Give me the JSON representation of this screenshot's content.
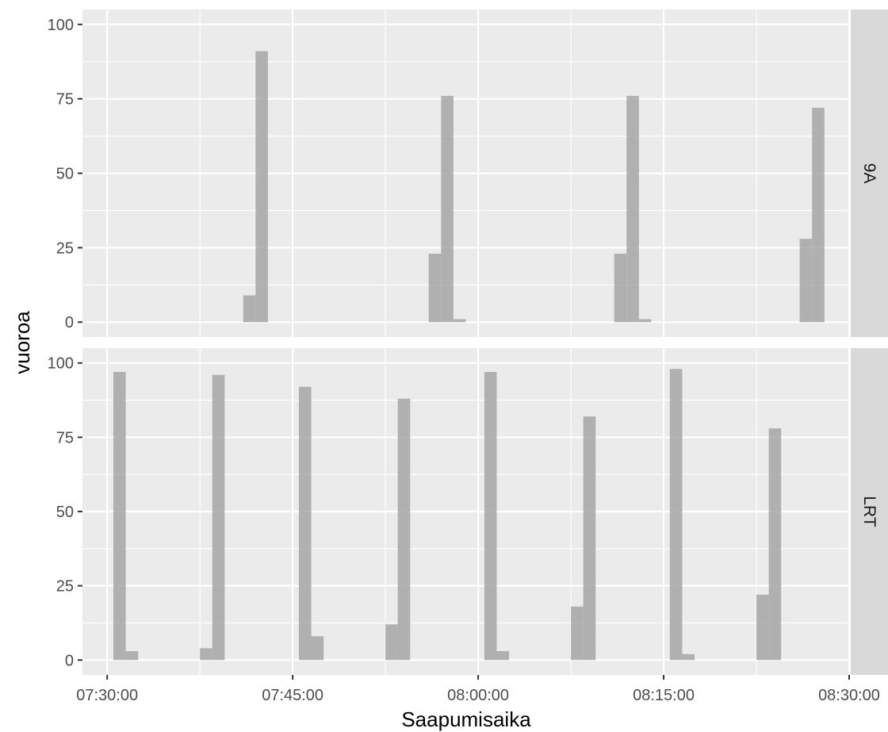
{
  "chart_data": {
    "type": "bar",
    "xlabel": "Saapumisaika",
    "ylabel": "vuoroa",
    "x_ticks": [
      "07:30:00",
      "07:45:00",
      "08:00:00",
      "08:15:00",
      "08:30:00"
    ],
    "x_tick_minutes": [
      0,
      15,
      30,
      45,
      60
    ],
    "xlim_minutes": [
      -2,
      60
    ],
    "ylim": [
      -5,
      105
    ],
    "y_ticks": [
      0,
      25,
      50,
      75,
      100
    ],
    "bin_width_minutes": 1,
    "grid": true,
    "facets": [
      {
        "label": "9A",
        "bins": [
          {
            "start": "07:41:00",
            "start_minute": 11,
            "count": 9
          },
          {
            "start": "07:42:00",
            "start_minute": 12,
            "count": 91
          },
          {
            "start": "07:56:00",
            "start_minute": 26,
            "count": 23
          },
          {
            "start": "07:57:00",
            "start_minute": 27,
            "count": 76
          },
          {
            "start": "07:58:00",
            "start_minute": 28,
            "count": 1
          },
          {
            "start": "08:11:00",
            "start_minute": 41,
            "count": 23
          },
          {
            "start": "08:12:00",
            "start_minute": 42,
            "count": 76
          },
          {
            "start": "08:13:00",
            "start_minute": 43,
            "count": 1
          },
          {
            "start": "08:26:00",
            "start_minute": 56,
            "count": 28
          },
          {
            "start": "08:27:00",
            "start_minute": 57,
            "count": 72
          }
        ]
      },
      {
        "label": "LRT",
        "bins": [
          {
            "start": "07:30:30",
            "start_minute": 0.5,
            "count": 97
          },
          {
            "start": "07:31:30",
            "start_minute": 1.5,
            "count": 3
          },
          {
            "start": "07:37:30",
            "start_minute": 7.5,
            "count": 4
          },
          {
            "start": "07:38:30",
            "start_minute": 8.5,
            "count": 96
          },
          {
            "start": "07:45:30",
            "start_minute": 15.5,
            "count": 92
          },
          {
            "start": "07:46:30",
            "start_minute": 16.5,
            "count": 8
          },
          {
            "start": "07:52:30",
            "start_minute": 22.5,
            "count": 12
          },
          {
            "start": "07:53:30",
            "start_minute": 23.5,
            "count": 88
          },
          {
            "start": "08:00:30",
            "start_minute": 30.5,
            "count": 97
          },
          {
            "start": "08:01:30",
            "start_minute": 31.5,
            "count": 3
          },
          {
            "start": "08:07:30",
            "start_minute": 37.5,
            "count": 18
          },
          {
            "start": "08:08:30",
            "start_minute": 38.5,
            "count": 82
          },
          {
            "start": "08:15:30",
            "start_minute": 45.5,
            "count": 98
          },
          {
            "start": "08:16:30",
            "start_minute": 46.5,
            "count": 2
          },
          {
            "start": "08:22:30",
            "start_minute": 52.5,
            "count": 22
          },
          {
            "start": "08:23:30",
            "start_minute": 53.5,
            "count": 78
          }
        ]
      }
    ]
  }
}
